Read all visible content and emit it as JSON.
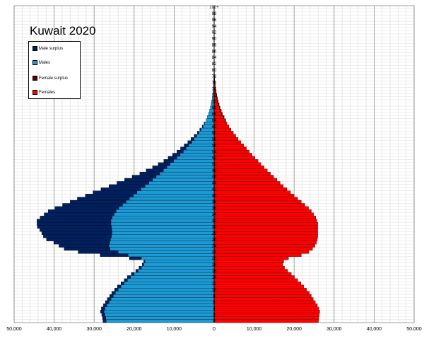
{
  "chart_data": {
    "type": "bar",
    "subtype": "population-pyramid",
    "title": "Kuwait 2020",
    "xlim": [
      -50000,
      50000
    ],
    "xticks": [
      -50000,
      -40000,
      -30000,
      -20000,
      -10000,
      0,
      10000,
      20000,
      30000,
      40000,
      50000
    ],
    "xtick_labels": [
      "50,000",
      "40,000",
      "30,000",
      "20,000",
      "10,000",
      "0",
      "10,000",
      "20,000",
      "30,000",
      "40,000",
      "50,000"
    ],
    "age_label_step": 2,
    "top_label": "100+",
    "legend": [
      {
        "label": "Male surplus",
        "color": "#002060"
      },
      {
        "label": "Males",
        "color": "#1C9AD6"
      },
      {
        "label": "Female surplus",
        "color": "#5A0000"
      },
      {
        "label": "Females",
        "color": "#FF0000"
      }
    ],
    "colors": {
      "male_surplus": "#002060",
      "males": "#1C9AD6",
      "female_surplus": "#5A0000",
      "females": "#FF0000",
      "grid": "#bfbfbf"
    },
    "ages": [
      0,
      1,
      2,
      3,
      4,
      5,
      6,
      7,
      8,
      9,
      10,
      11,
      12,
      13,
      14,
      15,
      16,
      17,
      18,
      19,
      20,
      21,
      22,
      23,
      24,
      25,
      26,
      27,
      28,
      29,
      30,
      31,
      32,
      33,
      34,
      35,
      36,
      37,
      38,
      39,
      40,
      41,
      42,
      43,
      44,
      45,
      46,
      47,
      48,
      49,
      50,
      51,
      52,
      53,
      54,
      55,
      56,
      57,
      58,
      59,
      60,
      61,
      62,
      63,
      64,
      65,
      66,
      67,
      68,
      69,
      70,
      71,
      72,
      73,
      74,
      75,
      76,
      77,
      78,
      79,
      80,
      81,
      82,
      83,
      84,
      85,
      86,
      87,
      88,
      89,
      90,
      91,
      92,
      93,
      94,
      95,
      96,
      97,
      98,
      99,
      100
    ],
    "males": [
      27000,
      27100,
      27300,
      27500,
      27300,
      26800,
      26300,
      25800,
      25200,
      24700,
      24000,
      23300,
      22500,
      21700,
      20900,
      20000,
      19000,
      18200,
      17600,
      17300,
      18200,
      21500,
      24000,
      26000,
      26300,
      26100,
      25900,
      25700,
      25600,
      25600,
      25700,
      25800,
      25800,
      25500,
      25000,
      24500,
      23800,
      22900,
      22000,
      21200,
      20200,
      19300,
      18300,
      17300,
      16300,
      15400,
      14500,
      13600,
      12700,
      11800,
      11000,
      10100,
      9300,
      8500,
      7700,
      7000,
      6300,
      5600,
      5000,
      4400,
      3800,
      3300,
      2800,
      2400,
      2000,
      1700,
      1400,
      1150,
      950,
      780,
      630,
      500,
      400,
      310,
      240,
      180,
      140,
      100,
      75,
      55,
      40,
      30,
      22,
      16,
      11,
      8,
      6,
      4,
      3,
      2,
      1,
      1,
      0,
      0,
      0,
      0,
      0,
      0,
      0,
      0,
      0
    ],
    "females": [
      26100,
      26200,
      26300,
      26400,
      26200,
      25800,
      25300,
      24800,
      24300,
      23800,
      23100,
      22400,
      21700,
      20900,
      20100,
      19300,
      18400,
      17600,
      17200,
      17400,
      18600,
      21800,
      23700,
      24600,
      25200,
      25600,
      25800,
      25900,
      25900,
      25900,
      25900,
      25900,
      25700,
      25400,
      24900,
      24300,
      23600,
      22700,
      21800,
      20900,
      20000,
      19100,
      18200,
      17300,
      16500,
      15700,
      14900,
      14100,
      13300,
      12500,
      11700,
      11000,
      10200,
      9500,
      8800,
      8100,
      7400,
      6700,
      6000,
      5400,
      4800,
      4200,
      3700,
      3200,
      2700,
      2300,
      1900,
      1600,
      1300,
      1050,
      850,
      680,
      540,
      420,
      320,
      240,
      180,
      130,
      95,
      70,
      50,
      35,
      25,
      18,
      13,
      9,
      6,
      4,
      3,
      2,
      1,
      1,
      0,
      0,
      0,
      0,
      0,
      0,
      0,
      0,
      0
    ],
    "male_surplus": [
      800,
      800,
      800,
      900,
      900,
      900,
      900,
      900,
      900,
      900,
      900,
      900,
      800,
      800,
      800,
      700,
      600,
      600,
      400,
      300,
      3000,
      7000,
      10000,
      11500,
      12500,
      14000,
      16000,
      17000,
      17500,
      18000,
      18500,
      18500,
      18500,
      18000,
      17500,
      17000,
      16000,
      15000,
      14000,
      13000,
      12000,
      11000,
      10000,
      9000,
      8000,
      7000,
      6000,
      5000,
      4300,
      3600,
      3000,
      2500,
      2200,
      1900,
      1600,
      1400,
      1200,
      1000,
      800,
      600,
      400,
      300,
      200,
      100,
      0,
      0,
      0,
      0,
      0,
      0,
      0,
      0,
      0,
      0,
      0,
      0,
      0,
      0,
      0,
      0,
      0,
      0,
      0,
      0,
      0,
      0,
      0,
      0,
      0,
      0,
      0,
      0,
      0,
      0,
      0,
      0,
      0,
      0,
      0,
      0,
      0
    ],
    "female_surplus": [
      0,
      0,
      0,
      0,
      0,
      0,
      0,
      0,
      0,
      0,
      0,
      0,
      0,
      0,
      0,
      0,
      0,
      0,
      0,
      0,
      0,
      0,
      0,
      0,
      0,
      0,
      0,
      0,
      0,
      0,
      0,
      0,
      0,
      0,
      0,
      0,
      0,
      0,
      0,
      0,
      0,
      0,
      0,
      0,
      0,
      0,
      0,
      0,
      0,
      0,
      0,
      0,
      0,
      0,
      0,
      0,
      0,
      0,
      0,
      0,
      0,
      0,
      0,
      0,
      200,
      200,
      200,
      200,
      200,
      200,
      200,
      180,
      140,
      110,
      80,
      60,
      40,
      30,
      20,
      15,
      10,
      5,
      3,
      2,
      2,
      1,
      0,
      0,
      0,
      0,
      0,
      0,
      0,
      0,
      0,
      0,
      0,
      0,
      0,
      0,
      0
    ]
  }
}
